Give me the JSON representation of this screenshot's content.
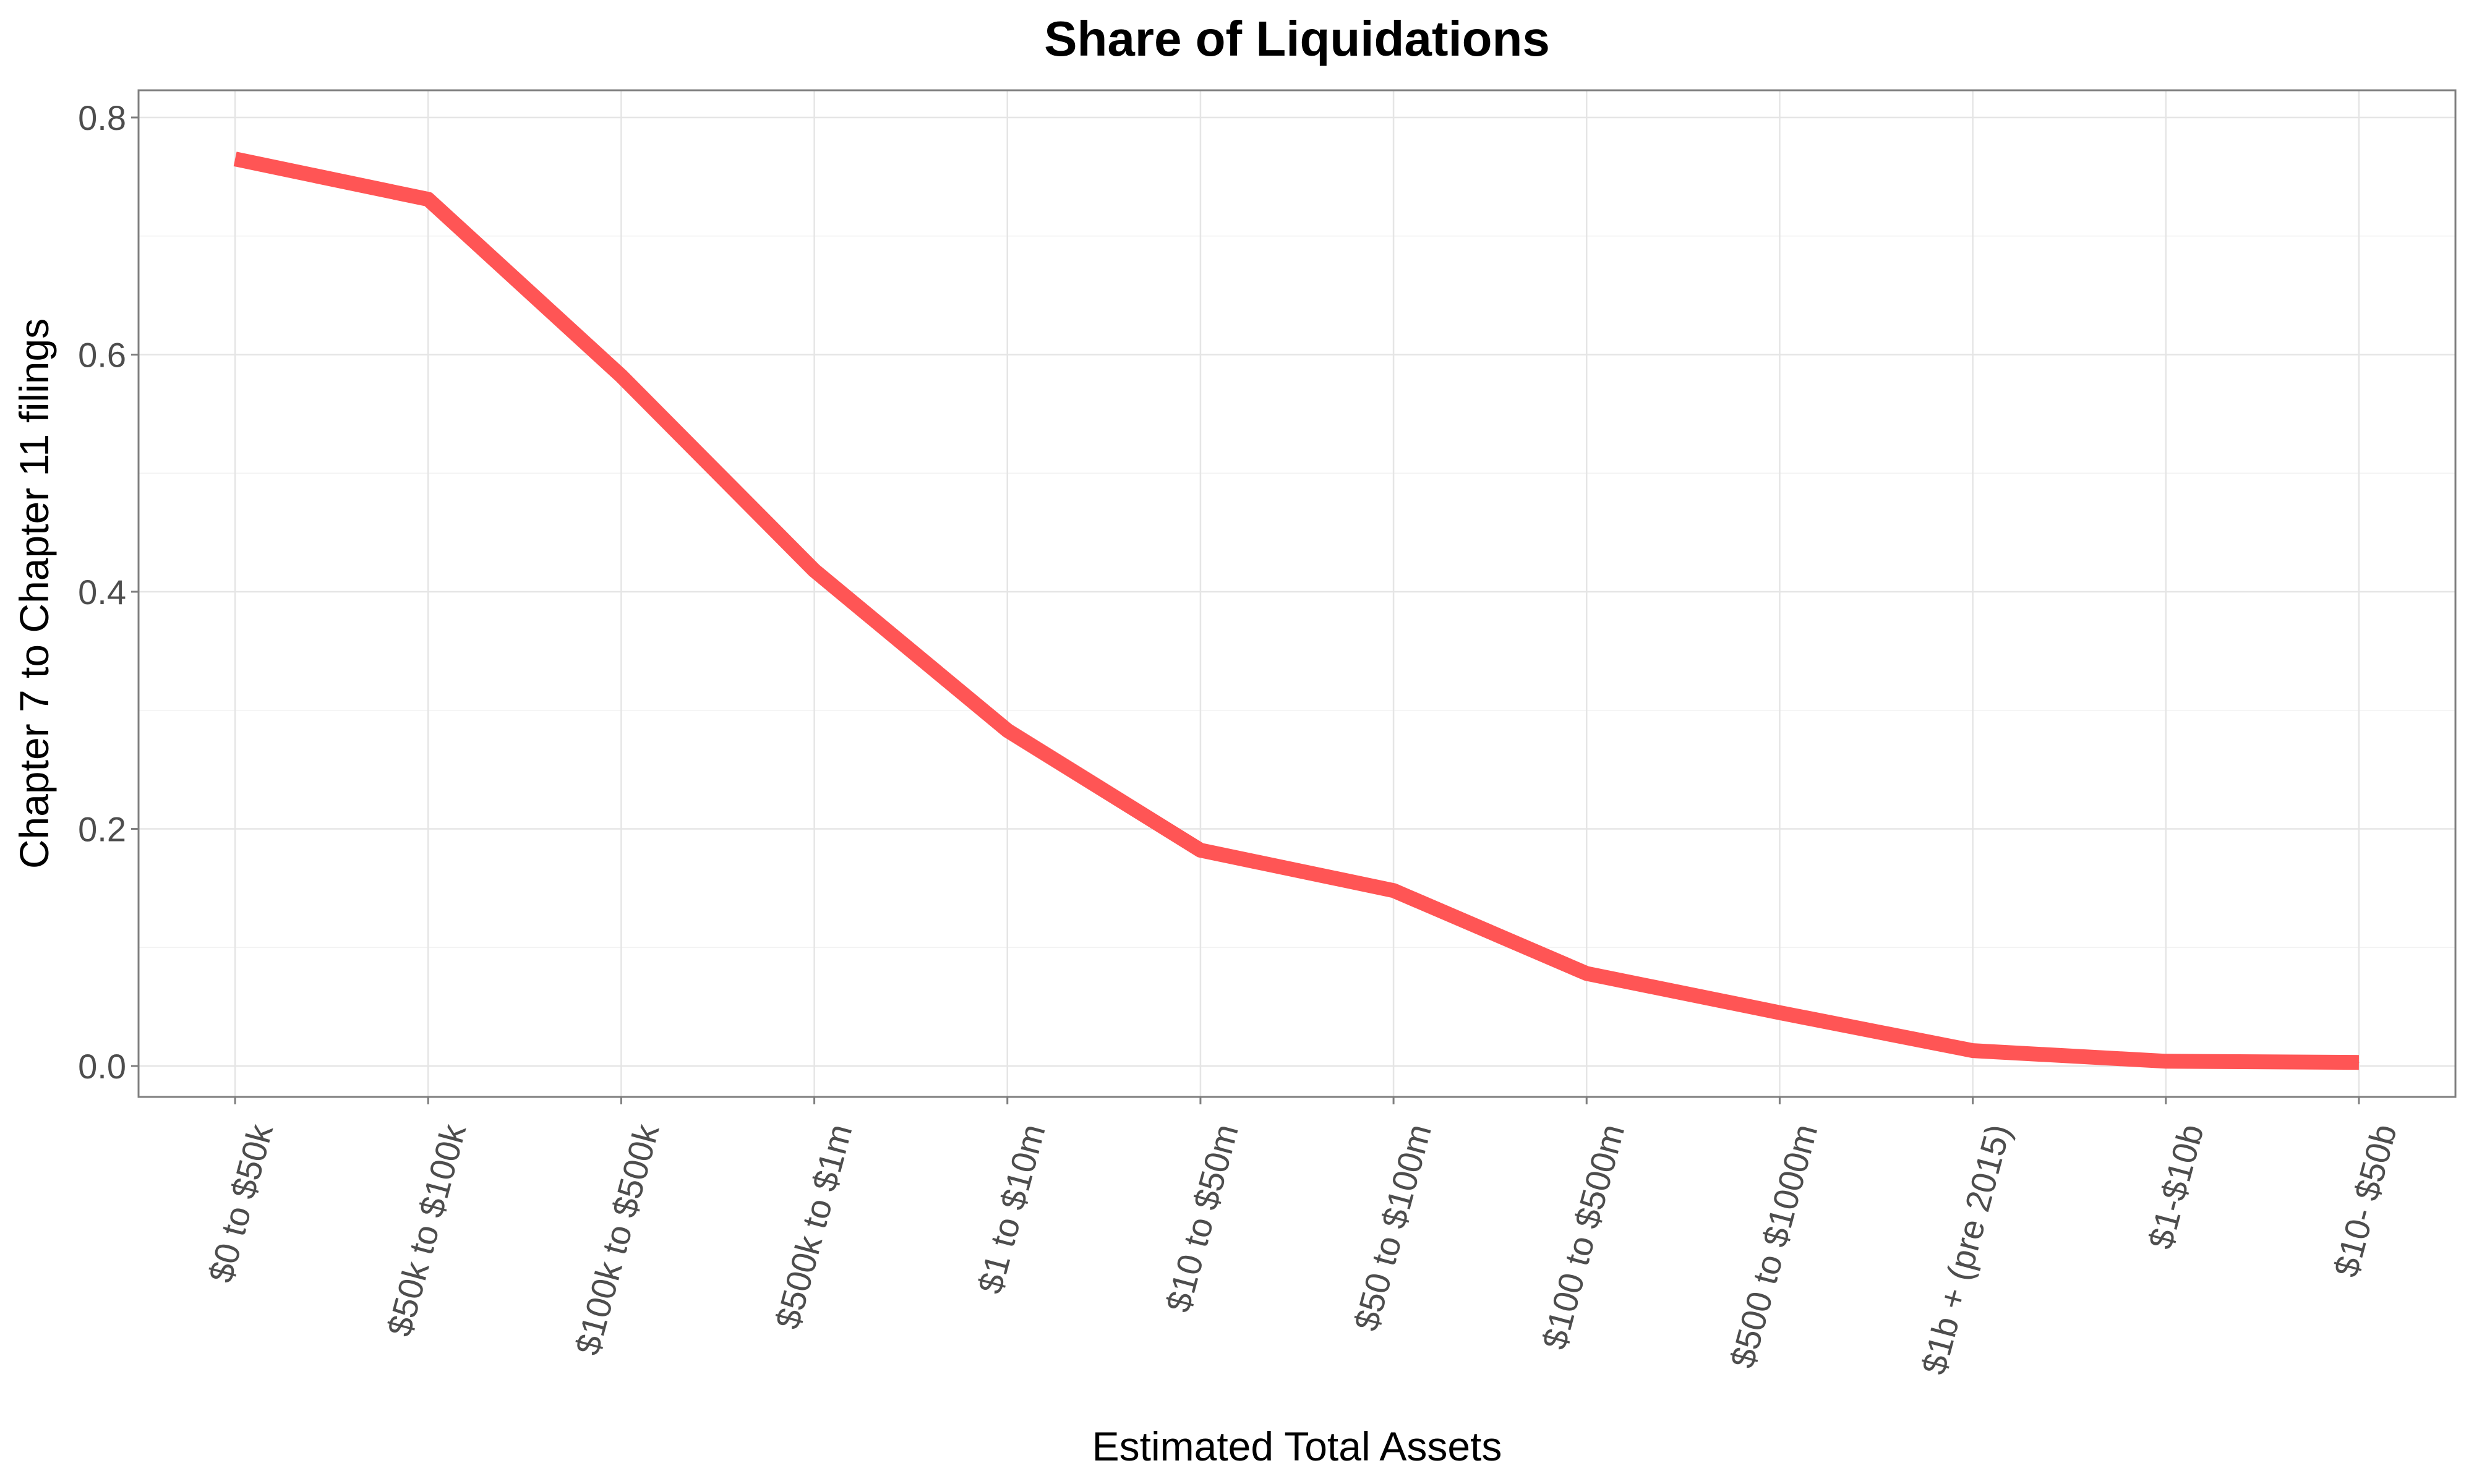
{
  "chart_data": {
    "type": "line",
    "title": "Share of Liquidations",
    "xlabel": "Estimated Total Assets",
    "ylabel": "Chapter 7 to Chapter 11 filings",
    "categories": [
      "$0 to $50k",
      "$50k to $100k",
      "$100k to $500k",
      "$500k to $1m",
      "$1 to $10m",
      "$10 to $50m",
      "$50 to $100m",
      "$100 to $500m",
      "$500 to $1000m",
      "$1b + (pre 2015)",
      "$1-$10b",
      "$10- $50b"
    ],
    "series": [
      {
        "values": [
          0.765,
          0.731,
          0.582,
          0.418,
          0.283,
          0.182,
          0.148,
          0.078,
          0.045,
          0.013,
          0.004,
          0.003
        ],
        "color": "#ff5555"
      }
    ],
    "ylim": [
      0.0,
      0.8
    ],
    "yticks": [
      0.0,
      0.2,
      0.4,
      0.6,
      0.8
    ],
    "ytick_labels": [
      "0.0",
      "0.2",
      "0.4",
      "0.6",
      "0.8"
    ],
    "grid": true,
    "legend": "none"
  }
}
